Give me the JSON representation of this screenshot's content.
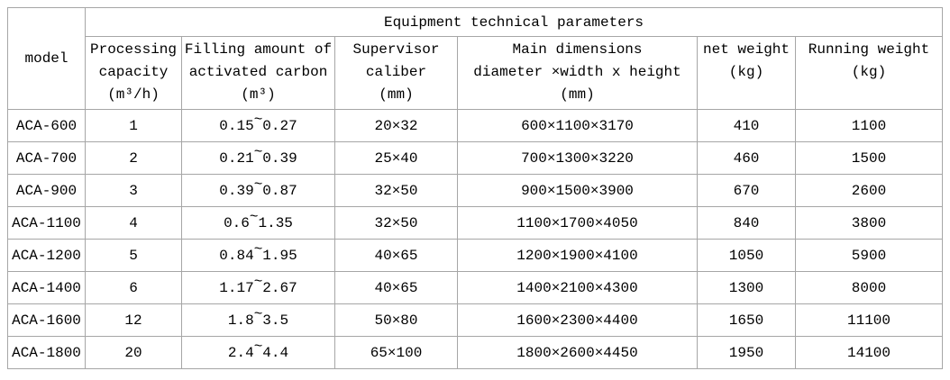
{
  "table": {
    "title": "Equipment technical parameters",
    "model_header": "model",
    "columns": [
      {
        "id": "processing-capacity",
        "lines": [
          "Processing",
          "capacity",
          "(m³/h)"
        ]
      },
      {
        "id": "filling-amount-activated-carbon",
        "lines": [
          "Filling amount of",
          "activated carbon",
          "(m³)"
        ]
      },
      {
        "id": "supervisor-caliber",
        "lines": [
          "Supervisor",
          "caliber",
          "(mm)"
        ]
      },
      {
        "id": "main-dimensions",
        "lines": [
          "Main dimensions",
          "diameter ×width x height",
          "(mm)"
        ]
      },
      {
        "id": "net-weight",
        "lines": [
          "net weight",
          "(kg)"
        ]
      },
      {
        "id": "running-weight",
        "lines": [
          "Running weight",
          "(kg)"
        ]
      }
    ],
    "rows": [
      [
        "ACA-600",
        "1",
        "0.15~0.27",
        "20×32",
        "600×1100×3170",
        "410",
        "1100"
      ],
      [
        "ACA-700",
        "2",
        "0.21~0.39",
        "25×40",
        "700×1300×3220",
        "460",
        "1500"
      ],
      [
        "ACA-900",
        "3",
        "0.39~0.87",
        "32×50",
        "900×1500×3900",
        "670",
        "2600"
      ],
      [
        "ACA-1100",
        "4",
        "0.6~1.35",
        "32×50",
        "1100×1700×4050",
        "840",
        "3800"
      ],
      [
        "ACA-1200",
        "5",
        "0.84~1.95",
        "40×65",
        "1200×1900×4100",
        "1050",
        "5900"
      ],
      [
        "ACA-1400",
        "6",
        "1.17~2.67",
        "40×65",
        "1400×2100×4300",
        "1300",
        "8000"
      ],
      [
        "ACA-1600",
        "12",
        "1.8~3.5",
        "50×80",
        "1600×2300×4400",
        "1650",
        "11100"
      ],
      [
        "ACA-1800",
        "20",
        "2.4~4.4",
        "65×100",
        "1800×2600×4450",
        "1950",
        "14100"
      ]
    ]
  },
  "chart_data": {
    "type": "table",
    "title": "Equipment technical parameters",
    "columns": [
      "model",
      "Processing capacity (m³/h)",
      "Filling amount of activated carbon (m³)",
      "Supervisor caliber (mm)",
      "Main dimensions diameter ×width x height (mm)",
      "net weight (kg)",
      "Running weight (kg)"
    ],
    "rows": [
      [
        "ACA-600",
        "1",
        "0.15~0.27",
        "20×32",
        "600×1100×3170",
        "410",
        "1100"
      ],
      [
        "ACA-700",
        "2",
        "0.21~0.39",
        "25×40",
        "700×1300×3220",
        "460",
        "1500"
      ],
      [
        "ACA-900",
        "3",
        "0.39~0.87",
        "32×50",
        "900×1500×3900",
        "670",
        "2600"
      ],
      [
        "ACA-1100",
        "4",
        "0.6~1.35",
        "32×50",
        "1100×1700×4050",
        "840",
        "3800"
      ],
      [
        "ACA-1200",
        "5",
        "0.84~1.95",
        "40×65",
        "1200×1900×4100",
        "1050",
        "5900"
      ],
      [
        "ACA-1400",
        "6",
        "1.17~2.67",
        "40×65",
        "1400×2100×4300",
        "1300",
        "8000"
      ],
      [
        "ACA-1600",
        "12",
        "1.8~3.5",
        "50×80",
        "1600×2300×4400",
        "1650",
        "11100"
      ],
      [
        "ACA-1800",
        "20",
        "2.4~4.4",
        "65×100",
        "1800×2600×4450",
        "1950",
        "14100"
      ]
    ]
  },
  "colors": {
    "border": "#a6a6a6",
    "text": "#000000",
    "background": "#ffffff"
  }
}
